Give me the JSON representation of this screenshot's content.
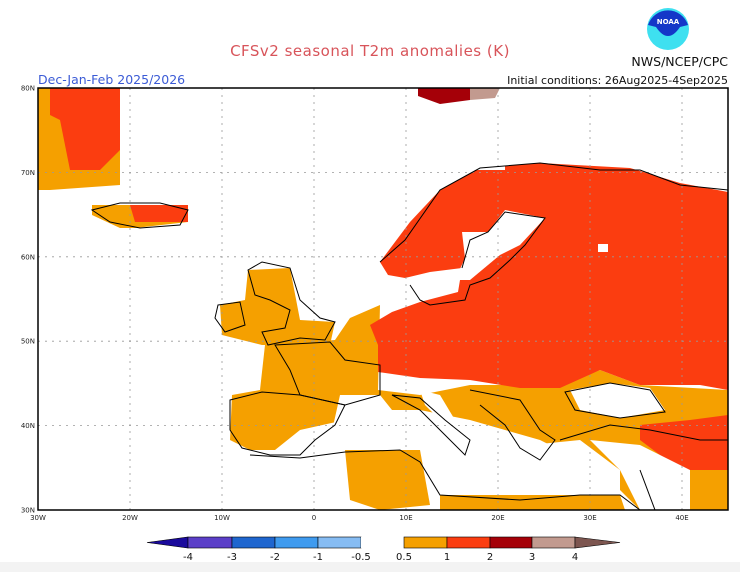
{
  "header": {
    "title": "CFSv2 seasonal T2m anomalies (K)",
    "agency": "NWS/NCEP/CPC",
    "season": "Dec-Jan-Feb 2025/2026",
    "initial_conditions": "Initial conditions: 26Aug2025-4Sep2025",
    "logo_text": "NOAA"
  },
  "map": {
    "lat_labels": [
      "80N",
      "70N",
      "60N",
      "50N",
      "40N",
      "30N"
    ],
    "lon_labels": [
      "30W",
      "20W",
      "10W",
      "0",
      "10E",
      "20E",
      "30E",
      "40E"
    ],
    "lon_range": [
      -30,
      45
    ],
    "lat_range": [
      30,
      80
    ]
  },
  "colorbar": {
    "labels": [
      "-4",
      "-3",
      "-2",
      "-1",
      "-0.5",
      "0.5",
      "1",
      "2",
      "3",
      "4"
    ],
    "colors": {
      "below_-4": "#1a0a9c",
      "-4_-3": "#5b3fc8",
      "-3_-2": "#1f66cf",
      "-2_-1": "#3f9bef",
      "-1_-0.5": "#86bcf3",
      "-0.5_0.5": "#ffffff",
      "0.5_1": "#f5a000",
      "1_2": "#fb3d10",
      "2_3": "#a50008",
      "3_4": "#c29a8f",
      "above_4": "#7d5650"
    }
  }
}
